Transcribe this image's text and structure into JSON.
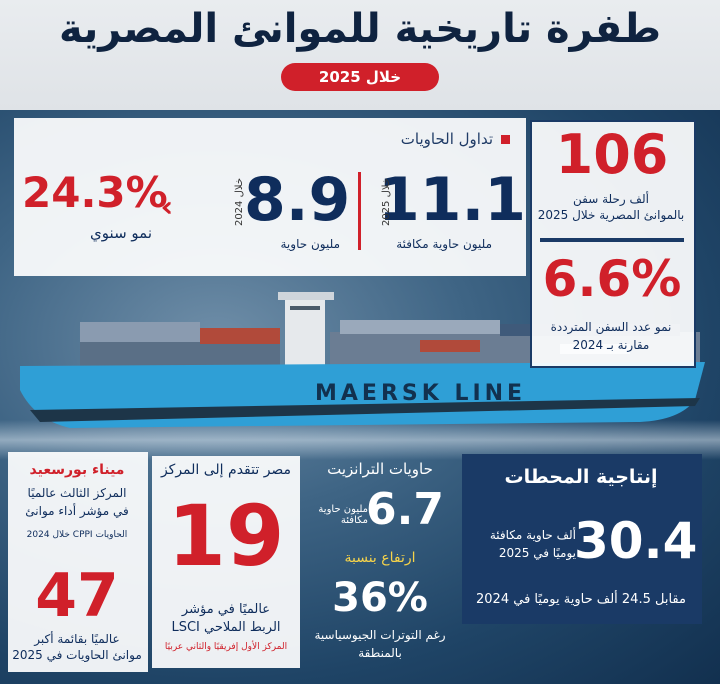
{
  "header": {
    "title": "طفرة تاريخية للموانئ المصرية",
    "subtitle": "خلال 2025"
  },
  "containers": {
    "section_title": "تداول الحاويات",
    "value_2025": "11.1",
    "year_2025": "خلال 2025",
    "unit_2025": "مليون حاوية مكافئة",
    "value_2024": "8.9",
    "year_2024": "خلال 2024",
    "unit_2024": "مليون حاوية",
    "growth": "24.3%",
    "growth_label": "نمو سنوي"
  },
  "trips": {
    "value": "106",
    "line1": "ألف رحلة سفن",
    "line2": "بالموانئ المصرية خلال 2025"
  },
  "ships_growth": {
    "value": "6.6%",
    "line1": "نمو عدد السفن المترددة",
    "line2": "مقارنة بـ 2024"
  },
  "ship": {
    "brand": "MAERSK LINE"
  },
  "port_said": {
    "title": "ميناء بورسعيد",
    "line1": "المركز الثالث عالميًا",
    "line2": "في مؤشر أداء موانئ",
    "line3": "الحاويات CPPI خلال 2024",
    "value": "47",
    "line4": "عالميًا بقائمة أكبر",
    "line5": "موانئ الحاويات في 2025"
  },
  "egypt_rank": {
    "title": "مصر تتقدم إلى المركز",
    "value": "19",
    "line1": "عالميًا في مؤشر",
    "line2": "الربط الملاحي LSCI",
    "note": "المركز الأول إفريقيًا والثاني عربيًا"
  },
  "transit": {
    "title": "حاويات الترانزيت",
    "value": "6.7",
    "unit": "مليون حاوية مكافئة",
    "rise_label": "ارتفاع بنسبة",
    "rise_value": "36%",
    "note1": "رغم التوترات الجيوسياسية",
    "note2": "بالمنطقة"
  },
  "productivity": {
    "title": "إنتاجية المحطات",
    "value": "30.4",
    "line1": "ألف حاوية مكافئة",
    "line2": "يوميًا في 2025",
    "compare": "مقابل 24.5 ألف حاوية يوميًا في 2024"
  }
}
